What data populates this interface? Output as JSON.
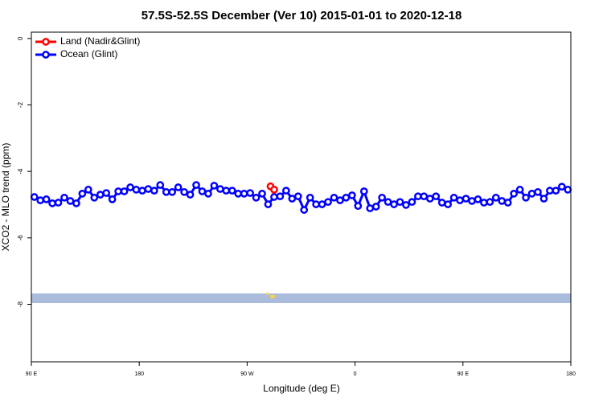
{
  "chart_data": {
    "type": "line",
    "title": "57.5S-52.5S December (Ver 10)   2015-01-01 to 2020-12-18",
    "x_label": "Longitude (deg E)",
    "y_label": "XCO2 - MLO trend (ppm)",
    "xlim": [
      90,
      540
    ],
    "ylim": [
      -9.73,
      0.19
    ],
    "xticks": [
      {
        "value": 90,
        "label": "90 E"
      },
      180,
      {
        "value": 270,
        "label": "90 W"
      },
      {
        "value": 360,
        "label": "0"
      },
      {
        "value": 450,
        "label": "90 E"
      },
      {
        "value": 540,
        "label": "180"
      }
    ],
    "yticks": [
      0,
      -2,
      -4,
      -6,
      -8
    ],
    "legend": "top-left",
    "series": [
      {
        "name": "Ocean (Glint)",
        "color": "#0000ff",
        "x": [
          92.5,
          97.5,
          102.5,
          107.5,
          112.5,
          117.5,
          122.5,
          127.5,
          132.5,
          137.5,
          142.5,
          147.5,
          152.5,
          157.5,
          162.5,
          167.5,
          172.5,
          177.5,
          182.5,
          187.5,
          192.5,
          197.5,
          202.5,
          207.5,
          212.5,
          217.5,
          222.5,
          227.5,
          232.5,
          237.5,
          242.5,
          247.5,
          252.5,
          257.5,
          262.5,
          267.5,
          272.5,
          277.5,
          282.5,
          287.5,
          292.5,
          297.5,
          302.5,
          307.5,
          312.5,
          317.5,
          322.5,
          327.5,
          332.5,
          337.5,
          342.5,
          347.5,
          352.5,
          357.5,
          362.5,
          367.5,
          372.5,
          377.5,
          382.5,
          387.5,
          392.5,
          397.5,
          402.5,
          407.5,
          412.5,
          417.5,
          422.5,
          427.5,
          432.5,
          437.5,
          442.5,
          447.5,
          452.5,
          457.5,
          462.5,
          467.5,
          472.5,
          477.5,
          482.5,
          487.5,
          492.5,
          497.5,
          502.5,
          507.5,
          512.5,
          517.5,
          522.5,
          527.5,
          532.5,
          537.5
        ],
        "values": [
          -4.77,
          -4.87,
          -4.84,
          -4.96,
          -4.94,
          -4.79,
          -4.89,
          -4.96,
          -4.67,
          -4.55,
          -4.79,
          -4.7,
          -4.65,
          -4.84,
          -4.6,
          -4.6,
          -4.48,
          -4.55,
          -4.58,
          -4.53,
          -4.58,
          -4.41,
          -4.62,
          -4.62,
          -4.48,
          -4.62,
          -4.7,
          -4.41,
          -4.6,
          -4.67,
          -4.43,
          -4.53,
          -4.58,
          -4.58,
          -4.67,
          -4.67,
          -4.65,
          -4.79,
          -4.67,
          -4.99,
          -4.77,
          -4.75,
          -4.58,
          -4.82,
          -4.75,
          -5.16,
          -4.79,
          -4.99,
          -4.99,
          -4.92,
          -4.79,
          -4.87,
          -4.79,
          -4.72,
          -5.04,
          -4.6,
          -5.11,
          -5.06,
          -4.79,
          -4.92,
          -4.99,
          -4.92,
          -5.01,
          -4.92,
          -4.75,
          -4.75,
          -4.82,
          -4.75,
          -4.94,
          -4.99,
          -4.79,
          -4.87,
          -4.82,
          -4.89,
          -4.84,
          -4.94,
          -4.92,
          -4.79,
          -4.89,
          -4.94,
          -4.67,
          -4.55,
          -4.79,
          -4.67,
          -4.62,
          -4.82,
          -4.58,
          -4.58,
          -4.46,
          -4.55
        ]
      },
      {
        "name": "Land (Nadir&Glint)",
        "color": "#ff0000",
        "x": [
          289.5,
          292.5
        ],
        "values": [
          -4.45,
          -4.55
        ]
      }
    ]
  }
}
